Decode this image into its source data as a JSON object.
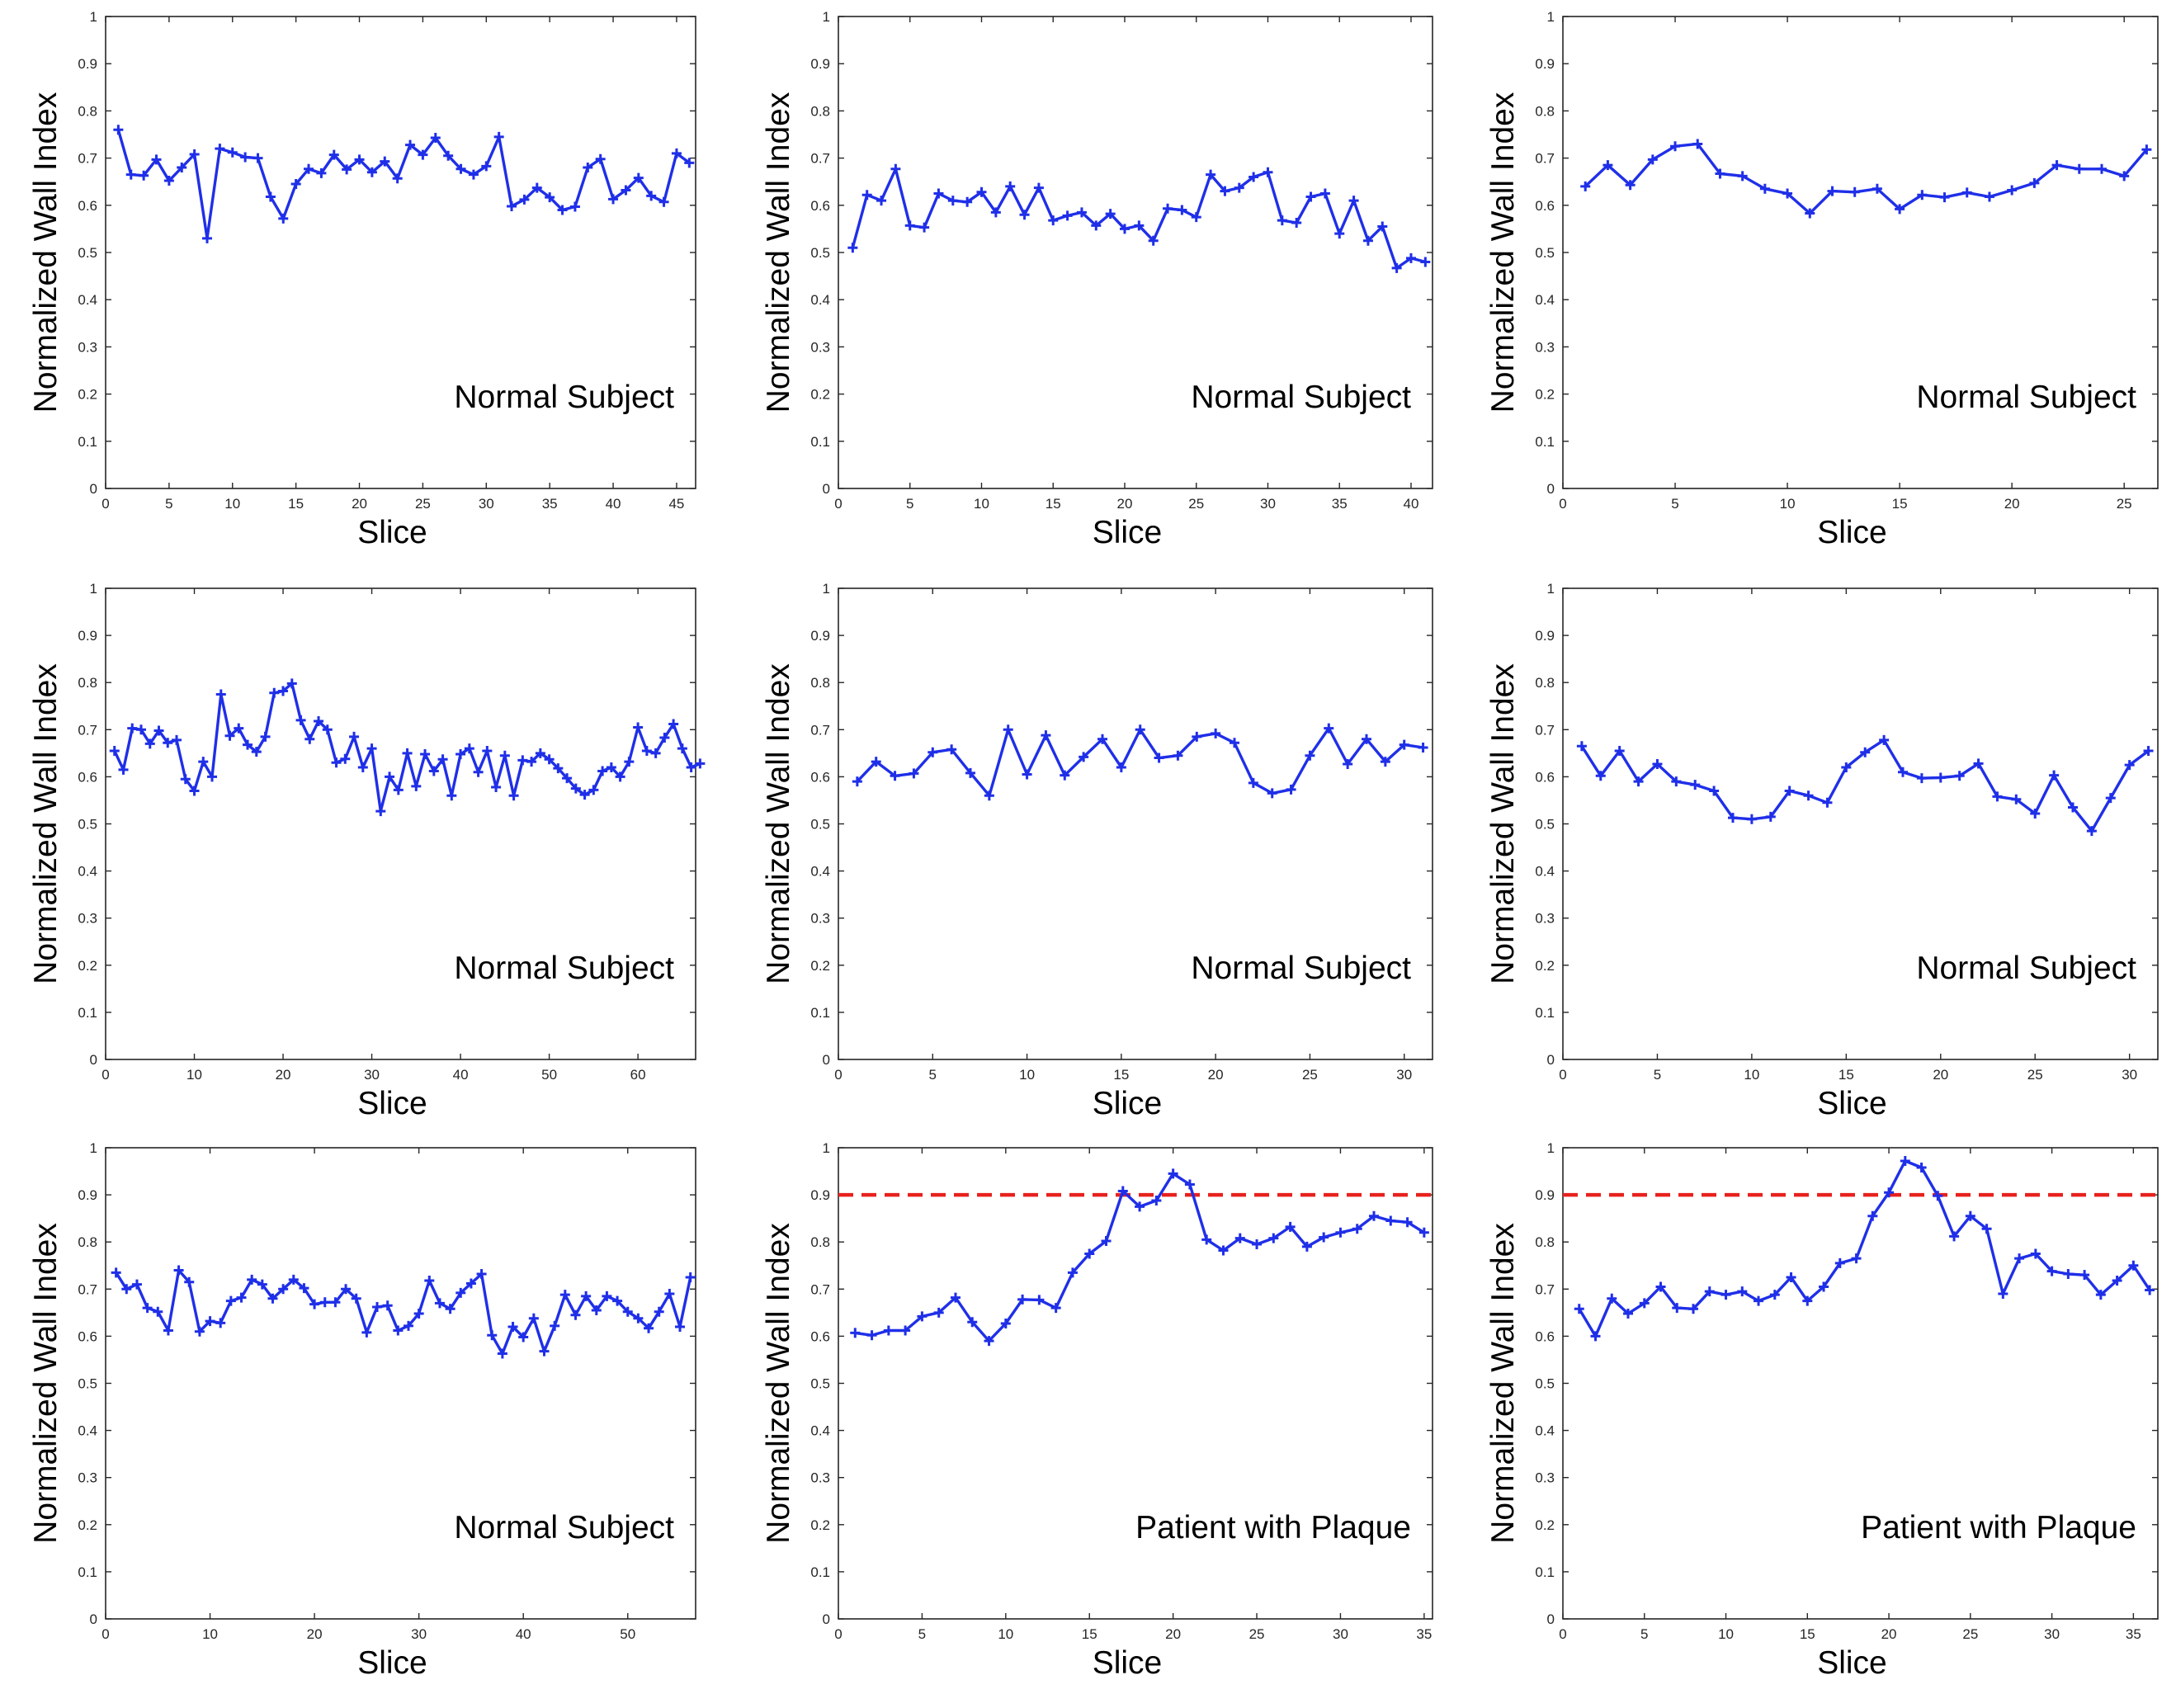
{
  "figure": {
    "description_label": "Normalized Wall Index per slice",
    "series_color": "#1f2fe8",
    "threshold_color": "#e8211d"
  },
  "chart_data": [
    {
      "type": "line",
      "panel": "row1-col1",
      "xlabel": "Slice",
      "ylabel": "Normalized Wall Index",
      "annotation": "Normal Subject",
      "xlim": [
        0,
        46.5
      ],
      "ylim": [
        0,
        1
      ],
      "xticks": [
        0,
        5,
        10,
        15,
        20,
        25,
        30,
        35,
        40,
        45
      ],
      "yticks": [
        0,
        0.1,
        0.2,
        0.3,
        0.4,
        0.5,
        0.6,
        0.7,
        0.8,
        0.9,
        1
      ],
      "threshold": null,
      "values": [
        0.76,
        0.665,
        0.663,
        0.697,
        0.652,
        0.68,
        0.708,
        0.53,
        0.72,
        0.712,
        0.702,
        0.7,
        0.618,
        0.572,
        0.645,
        0.677,
        0.668,
        0.707,
        0.676,
        0.697,
        0.67,
        0.693,
        0.657,
        0.728,
        0.707,
        0.743,
        0.705,
        0.677,
        0.665,
        0.683,
        0.745,
        0.598,
        0.612,
        0.637,
        0.617,
        0.59,
        0.597,
        0.68,
        0.698,
        0.613,
        0.632,
        0.658,
        0.62,
        0.607,
        0.71,
        0.69
      ]
    },
    {
      "type": "line",
      "panel": "row1-col2",
      "xlabel": "Slice",
      "ylabel": "Normalized Wall Index",
      "annotation": "Normal Subject",
      "xlim": [
        0,
        41.5
      ],
      "ylim": [
        0,
        1
      ],
      "xticks": [
        0,
        5,
        10,
        15,
        20,
        25,
        30,
        35,
        40
      ],
      "yticks": [
        0,
        0.1,
        0.2,
        0.3,
        0.4,
        0.5,
        0.6,
        0.7,
        0.8,
        0.9,
        1
      ],
      "threshold": null,
      "values": [
        0.51,
        0.622,
        0.61,
        0.677,
        0.557,
        0.553,
        0.625,
        0.61,
        0.607,
        0.628,
        0.585,
        0.64,
        0.58,
        0.637,
        0.568,
        0.578,
        0.585,
        0.557,
        0.582,
        0.55,
        0.557,
        0.525,
        0.593,
        0.59,
        0.575,
        0.665,
        0.63,
        0.637,
        0.66,
        0.67,
        0.568,
        0.563,
        0.618,
        0.625,
        0.54,
        0.61,
        0.525,
        0.555,
        0.467,
        0.488,
        0.48
      ]
    },
    {
      "type": "line",
      "panel": "row1-col3",
      "xlabel": "Slice",
      "ylabel": "Normalized Wall Index",
      "annotation": "Normal Subject",
      "xlim": [
        0,
        26.5
      ],
      "ylim": [
        0,
        1
      ],
      "xticks": [
        0,
        5,
        10,
        15,
        20,
        25
      ],
      "yticks": [
        0,
        0.1,
        0.2,
        0.3,
        0.4,
        0.5,
        0.6,
        0.7,
        0.8,
        0.9,
        1
      ],
      "threshold": null,
      "values": [
        0.64,
        0.685,
        0.643,
        0.697,
        0.725,
        0.73,
        0.667,
        0.662,
        0.635,
        0.625,
        0.583,
        0.63,
        0.628,
        0.635,
        0.592,
        0.622,
        0.617,
        0.627,
        0.618,
        0.632,
        0.647,
        0.685,
        0.677,
        0.677,
        0.662,
        0.718
      ]
    },
    {
      "type": "line",
      "panel": "row2-col1",
      "xlabel": "Slice",
      "ylabel": "Normalized Wall Index",
      "annotation": "Normal Subject",
      "xlim": [
        0,
        66.5
      ],
      "ylim": [
        0,
        1
      ],
      "xticks": [
        0,
        10,
        20,
        30,
        40,
        50,
        60
      ],
      "yticks": [
        0,
        0.1,
        0.2,
        0.3,
        0.4,
        0.5,
        0.6,
        0.7,
        0.8,
        0.9,
        1
      ],
      "threshold": null,
      "values": [
        0.655,
        0.615,
        0.703,
        0.7,
        0.67,
        0.698,
        0.672,
        0.678,
        0.595,
        0.57,
        0.632,
        0.6,
        0.775,
        0.687,
        0.703,
        0.668,
        0.653,
        0.685,
        0.778,
        0.782,
        0.798,
        0.72,
        0.68,
        0.718,
        0.7,
        0.63,
        0.638,
        0.685,
        0.62,
        0.66,
        0.527,
        0.6,
        0.572,
        0.65,
        0.58,
        0.648,
        0.612,
        0.637,
        0.56,
        0.648,
        0.66,
        0.61,
        0.655,
        0.578,
        0.645,
        0.56,
        0.635,
        0.632,
        0.65,
        0.637,
        0.618,
        0.597,
        0.575,
        0.562,
        0.572,
        0.612,
        0.62,
        0.6,
        0.632,
        0.705,
        0.655,
        0.65,
        0.683,
        0.712,
        0.66,
        0.62,
        0.628
      ]
    },
    {
      "type": "line",
      "panel": "row2-col2",
      "xlabel": "Slice",
      "ylabel": "Normalized Wall Index",
      "annotation": "Normal Subject",
      "xlim": [
        0,
        31.5
      ],
      "ylim": [
        0,
        1
      ],
      "xticks": [
        0,
        5,
        10,
        15,
        20,
        25,
        30
      ],
      "yticks": [
        0,
        0.1,
        0.2,
        0.3,
        0.4,
        0.5,
        0.6,
        0.7,
        0.8,
        0.9,
        1
      ],
      "threshold": null,
      "values": [
        0.59,
        0.632,
        0.602,
        0.607,
        0.652,
        0.658,
        0.608,
        0.56,
        0.7,
        0.605,
        0.688,
        0.603,
        0.642,
        0.68,
        0.62,
        0.7,
        0.64,
        0.645,
        0.685,
        0.692,
        0.672,
        0.587,
        0.565,
        0.573,
        0.645,
        0.703,
        0.627,
        0.68,
        0.632,
        0.668,
        0.662
      ]
    },
    {
      "type": "line",
      "panel": "row2-col3",
      "xlabel": "Slice",
      "ylabel": "Normalized Wall Index",
      "annotation": "Normal Subject",
      "xlim": [
        0,
        31.5
      ],
      "ylim": [
        0,
        1
      ],
      "xticks": [
        0,
        5,
        10,
        15,
        20,
        25,
        30
      ],
      "yticks": [
        0,
        0.1,
        0.2,
        0.3,
        0.4,
        0.5,
        0.6,
        0.7,
        0.8,
        0.9,
        1
      ],
      "threshold": null,
      "values": [
        0.665,
        0.602,
        0.655,
        0.59,
        0.627,
        0.59,
        0.583,
        0.57,
        0.513,
        0.51,
        0.515,
        0.57,
        0.56,
        0.545,
        0.62,
        0.652,
        0.678,
        0.61,
        0.597,
        0.598,
        0.602,
        0.628,
        0.558,
        0.552,
        0.522,
        0.603,
        0.535,
        0.485,
        0.555,
        0.625,
        0.655
      ]
    },
    {
      "type": "line",
      "panel": "row3-col1",
      "xlabel": "Slice",
      "ylabel": "Normalized Wall Index",
      "annotation": "Normal Subject",
      "xlim": [
        0,
        56.5
      ],
      "ylim": [
        0,
        1
      ],
      "xticks": [
        0,
        10,
        20,
        30,
        40,
        50
      ],
      "yticks": [
        0,
        0.1,
        0.2,
        0.3,
        0.4,
        0.5,
        0.6,
        0.7,
        0.8,
        0.9,
        1
      ],
      "threshold": null,
      "values": [
        0.735,
        0.7,
        0.71,
        0.66,
        0.652,
        0.612,
        0.74,
        0.715,
        0.61,
        0.632,
        0.628,
        0.675,
        0.682,
        0.72,
        0.71,
        0.68,
        0.7,
        0.72,
        0.702,
        0.668,
        0.672,
        0.672,
        0.7,
        0.68,
        0.608,
        0.662,
        0.665,
        0.612,
        0.622,
        0.648,
        0.718,
        0.67,
        0.658,
        0.692,
        0.712,
        0.732,
        0.602,
        0.563,
        0.62,
        0.598,
        0.638,
        0.568,
        0.622,
        0.688,
        0.645,
        0.685,
        0.655,
        0.685,
        0.675,
        0.652,
        0.638,
        0.617,
        0.652,
        0.69,
        0.62,
        0.725
      ]
    },
    {
      "type": "line",
      "panel": "row3-col2",
      "xlabel": "Slice",
      "ylabel": "Normalized Wall Index",
      "annotation": "Patient with Plaque",
      "xlim": [
        0,
        35.5
      ],
      "ylim": [
        0,
        1
      ],
      "xticks": [
        0,
        5,
        10,
        15,
        20,
        25,
        30,
        35
      ],
      "yticks": [
        0,
        0.1,
        0.2,
        0.3,
        0.4,
        0.5,
        0.6,
        0.7,
        0.8,
        0.9,
        1
      ],
      "threshold": 0.9,
      "values": [
        0.607,
        0.602,
        0.612,
        0.612,
        0.642,
        0.65,
        0.682,
        0.63,
        0.59,
        0.627,
        0.678,
        0.677,
        0.66,
        0.735,
        0.775,
        0.802,
        0.908,
        0.875,
        0.888,
        0.945,
        0.922,
        0.805,
        0.782,
        0.808,
        0.795,
        0.808,
        0.832,
        0.79,
        0.81,
        0.82,
        0.828,
        0.855,
        0.845,
        0.842,
        0.82
      ]
    },
    {
      "type": "line",
      "panel": "row3-col3",
      "xlabel": "Slice",
      "ylabel": "Normalized Wall Index",
      "annotation": "Patient with Plaque",
      "xlim": [
        0,
        36.5
      ],
      "ylim": [
        0,
        1
      ],
      "xticks": [
        0,
        5,
        10,
        15,
        20,
        25,
        30,
        35
      ],
      "yticks": [
        0,
        0.1,
        0.2,
        0.3,
        0.4,
        0.5,
        0.6,
        0.7,
        0.8,
        0.9,
        1
      ],
      "threshold": 0.9,
      "values": [
        0.658,
        0.6,
        0.68,
        0.648,
        0.67,
        0.705,
        0.66,
        0.658,
        0.695,
        0.688,
        0.695,
        0.675,
        0.688,
        0.725,
        0.675,
        0.705,
        0.755,
        0.765,
        0.855,
        0.905,
        0.972,
        0.958,
        0.898,
        0.812,
        0.855,
        0.828,
        0.69,
        0.765,
        0.775,
        0.738,
        0.732,
        0.73,
        0.688,
        0.718,
        0.75,
        0.698
      ]
    }
  ]
}
